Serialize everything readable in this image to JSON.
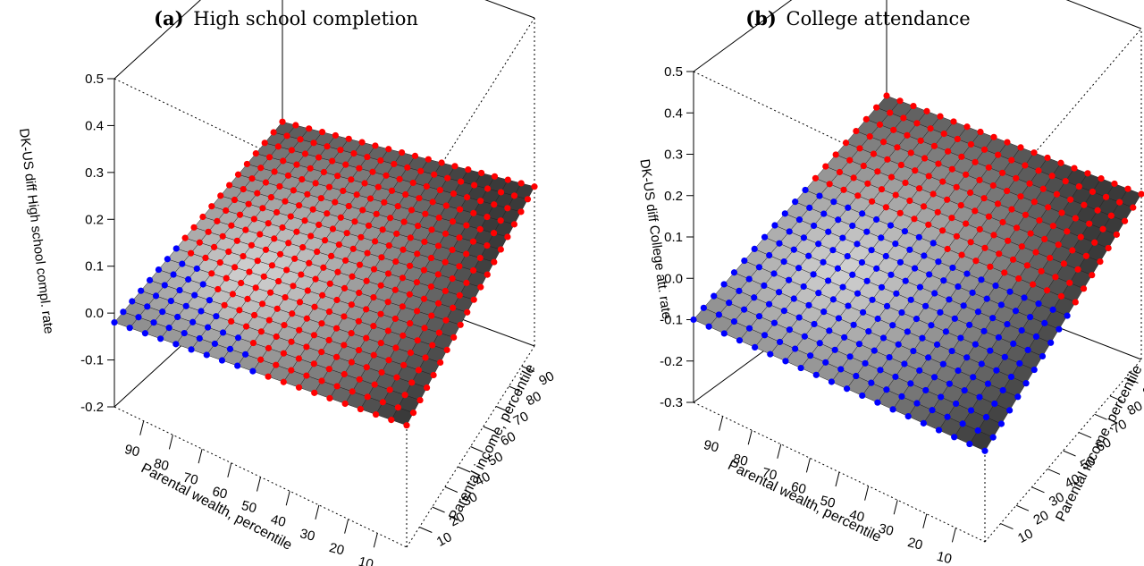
{
  "chart_data": [
    {
      "type": "surface3d",
      "panel_tag": "(a)",
      "title": "High school completion",
      "xlabel": "Parental wealth, percentile",
      "ylabel": "Parental income, percentile",
      "zlabel": "DK-US diff High school compl. rate",
      "x_ticks": [
        10,
        20,
        30,
        40,
        50,
        60,
        70,
        80,
        90
      ],
      "y_ticks": [
        10,
        20,
        30,
        40,
        50,
        60,
        70,
        80,
        90
      ],
      "z_ticks": [
        "-0.2",
        "-0.1",
        "0.0",
        "0.1",
        "0.2",
        "0.3",
        "0.4",
        "0.5"
      ],
      "xlim": [
        0,
        100
      ],
      "ylim": [
        0,
        100
      ],
      "zlim": [
        -0.2,
        0.5
      ],
      "grid_points_per_axis": 20,
      "point_color_rule": "red where difference > 0, blue where difference < 0",
      "colors": {
        "positive": "#ff0000",
        "negative": "#0000ff",
        "surface_light": "#d0d0d0",
        "surface_dark": "#3a3a3a"
      },
      "corner_values": {
        "wealth0_income0": 0.06,
        "wealth0_income100": 0.14,
        "wealth100_income0": -0.02,
        "wealth100_income100": 0.08
      },
      "value_range": [
        -0.02,
        0.14
      ]
    },
    {
      "type": "surface3d",
      "panel_tag": "(b)",
      "title": "College attendance",
      "xlabel": "Parental wealth, percentile",
      "ylabel": "Parental income, percentile",
      "zlabel": "DK-US diff College att. rate",
      "x_ticks": [
        10,
        20,
        30,
        40,
        50,
        60,
        70,
        80,
        90
      ],
      "y_ticks": [
        10,
        20,
        30,
        40,
        50,
        60,
        70,
        80,
        90
      ],
      "z_ticks": [
        "-0.3",
        "-0.2",
        "-0.1",
        "0.0",
        "0.1",
        "0.2",
        "0.3",
        "0.4",
        "0.5"
      ],
      "xlim": [
        0,
        100
      ],
      "ylim": [
        0,
        100
      ],
      "zlim": [
        -0.3,
        0.5
      ],
      "grid_points_per_axis": 20,
      "point_color_rule": "red where difference > 0, blue where difference < 0",
      "colors": {
        "positive": "#ff0000",
        "negative": "#0000ff",
        "surface_light": "#d0d0d0",
        "surface_dark": "#3a3a3a"
      },
      "corner_values": {
        "wealth0_income0": -0.08,
        "wealth0_income100": 0.1,
        "wealth100_income0": -0.1,
        "wealth100_income100": 0.1
      },
      "value_range": [
        -0.1,
        0.12
      ]
    }
  ]
}
